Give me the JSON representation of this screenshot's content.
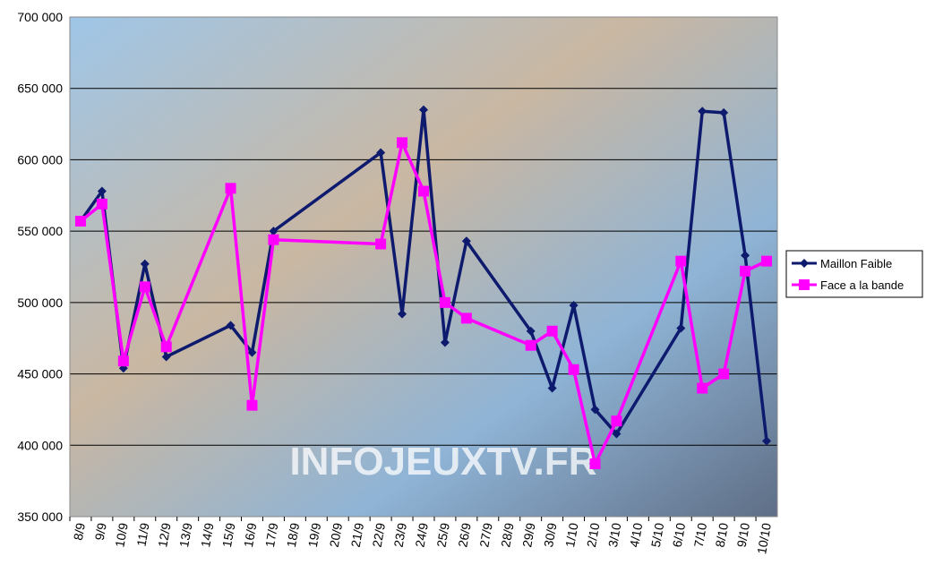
{
  "chart_data": {
    "type": "line",
    "watermark": "INFOJEUXTV.FR",
    "categories": [
      "8/9",
      "9/9",
      "10/9",
      "11/9",
      "12/9",
      "13/9",
      "14/9",
      "15/9",
      "16/9",
      "17/9",
      "18/9",
      "19/9",
      "20/9",
      "21/9",
      "22/9",
      "23/9",
      "24/9",
      "25/9",
      "26/9",
      "27/9",
      "28/9",
      "29/9",
      "30/9",
      "1/10",
      "2/10",
      "3/10",
      "4/10",
      "5/10",
      "6/10",
      "7/10",
      "8/10",
      "9/10",
      "10/10"
    ],
    "series": [
      {
        "name": "Maillon Faible",
        "color": "#0d1a6e",
        "marker": "diamond",
        "x": [
          "8/9",
          "9/9",
          "10/9",
          "11/9",
          "12/9",
          "15/9",
          "16/9",
          "17/9",
          "22/9",
          "23/9",
          "24/9",
          "25/9",
          "26/9",
          "29/9",
          "30/9",
          "1/10",
          "2/10",
          "3/10",
          "6/10",
          "7/10",
          "8/10",
          "9/10",
          "10/10"
        ],
        "values": [
          557000,
          578000,
          454000,
          527000,
          462000,
          484000,
          465000,
          550000,
          605000,
          492000,
          635000,
          472000,
          543000,
          480000,
          440000,
          498000,
          425000,
          408000,
          482000,
          634000,
          633000,
          533000,
          403000
        ]
      },
      {
        "name": "Face a la bande",
        "color": "#ff00ff",
        "marker": "square",
        "x": [
          "8/9",
          "9/9",
          "10/9",
          "11/9",
          "12/9",
          "15/9",
          "16/9",
          "17/9",
          "22/9",
          "23/9",
          "24/9",
          "25/9",
          "26/9",
          "29/9",
          "30/9",
          "1/10",
          "2/10",
          "3/10",
          "6/10",
          "7/10",
          "8/10",
          "9/10",
          "10/10"
        ],
        "values": [
          557000,
          569000,
          459000,
          511000,
          469000,
          580000,
          428000,
          544000,
          541000,
          612000,
          578000,
          500000,
          489000,
          470000,
          480000,
          453000,
          387000,
          417000,
          529000,
          440000,
          450000,
          522000,
          529000
        ]
      }
    ],
    "ylim": [
      350000,
      700000
    ],
    "yticks": [
      {
        "value": 350000,
        "label": "350 000"
      },
      {
        "value": 400000,
        "label": "400 000"
      },
      {
        "value": 450000,
        "label": "450 000"
      },
      {
        "value": 500000,
        "label": "500 000"
      },
      {
        "value": 550000,
        "label": "550 000"
      },
      {
        "value": 600000,
        "label": "600 000"
      },
      {
        "value": 650000,
        "label": "650 000"
      },
      {
        "value": 700000,
        "label": "700 000"
      }
    ],
    "grid": true,
    "legend": "right"
  }
}
